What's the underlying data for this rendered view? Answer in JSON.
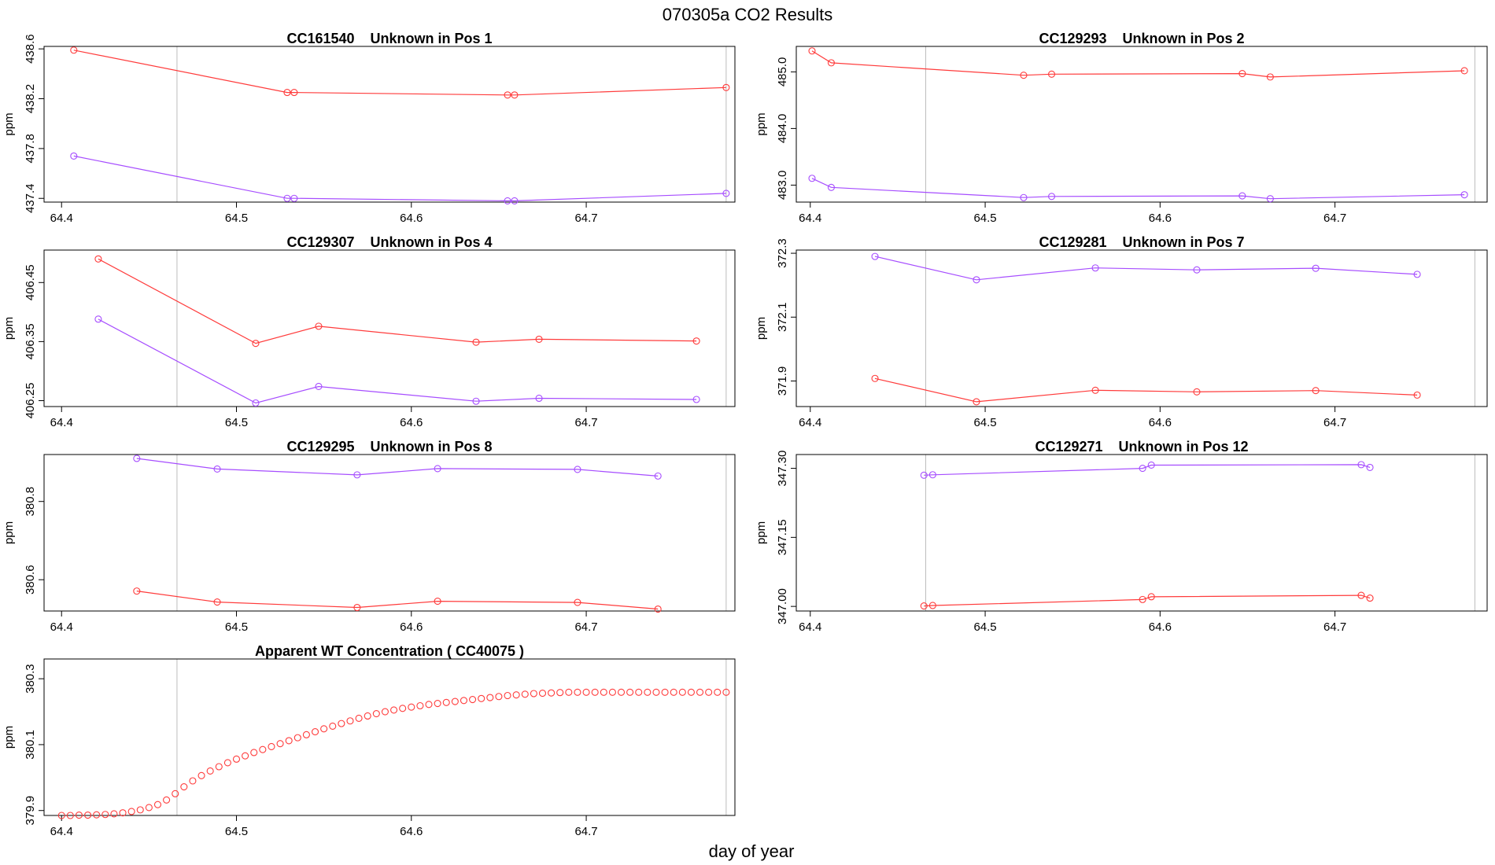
{
  "figure": {
    "title": "070305a  CO2 Results",
    "xlabel": "day of year"
  },
  "colors": {
    "red": "#ff3b3b",
    "purple": "#a64dff",
    "vline": "#bdbdbd",
    "frame": "#000000"
  },
  "chart_data": [
    {
      "type": "line",
      "title": "CC161540    Unknown in Pos 1",
      "ylabel": "ppm",
      "xlim": [
        64.39,
        64.785
      ],
      "ylim": [
        437.37,
        438.62
      ],
      "xticks": [
        64.4,
        64.5,
        64.6,
        64.7
      ],
      "xtick_labels": [
        "64.4",
        "64.5",
        "64.6",
        "64.7"
      ],
      "yticks": [
        437.4,
        437.8,
        438.2,
        438.6
      ],
      "ytick_labels": [
        "437.4",
        "437.8",
        "438.2",
        "438.6"
      ],
      "vlines": [
        64.466,
        64.78
      ],
      "series": [
        {
          "color": "red",
          "x": [
            64.407,
            64.529,
            64.533,
            64.655,
            64.659,
            64.78
          ],
          "y": [
            438.59,
            438.25,
            438.25,
            438.23,
            438.23,
            438.29
          ]
        },
        {
          "color": "purple",
          "x": [
            64.407,
            64.529,
            64.533,
            64.655,
            64.659,
            64.78
          ],
          "y": [
            437.74,
            437.4,
            437.4,
            437.38,
            437.38,
            437.44
          ]
        }
      ]
    },
    {
      "type": "line",
      "title": "CC129293    Unknown in Pos 2",
      "ylabel": "ppm",
      "xlim": [
        64.392,
        64.787
      ],
      "ylim": [
        482.7,
        485.45
      ],
      "xticks": [
        64.4,
        64.5,
        64.6,
        64.7
      ],
      "xtick_labels": [
        "64.4",
        "64.5",
        "64.6",
        "64.7"
      ],
      "yticks": [
        483.0,
        484.0,
        485.0
      ],
      "ytick_labels": [
        "483.0",
        "484.0",
        "485.0"
      ],
      "vlines": [
        64.466,
        64.78
      ],
      "series": [
        {
          "color": "red",
          "x": [
            64.401,
            64.412,
            64.522,
            64.538,
            64.647,
            64.663,
            64.774
          ],
          "y": [
            485.37,
            485.16,
            484.94,
            484.96,
            484.97,
            484.91,
            485.02
          ]
        },
        {
          "color": "purple",
          "x": [
            64.401,
            64.412,
            64.522,
            64.538,
            64.647,
            64.663,
            64.774
          ],
          "y": [
            483.12,
            482.96,
            482.78,
            482.8,
            482.81,
            482.76,
            482.83
          ]
        }
      ]
    },
    {
      "type": "line",
      "title": "CC129307    Unknown in Pos 4",
      "ylabel": "ppm",
      "xlim": [
        64.39,
        64.785
      ],
      "ylim": [
        406.24,
        406.505
      ],
      "xticks": [
        64.4,
        64.5,
        64.6,
        64.7
      ],
      "xtick_labels": [
        "64.4",
        "64.5",
        "64.6",
        "64.7"
      ],
      "yticks": [
        406.25,
        406.35,
        406.45
      ],
      "ytick_labels": [
        "406.25",
        "406.35",
        "406.45"
      ],
      "vlines": [
        64.466,
        64.78
      ],
      "series": [
        {
          "color": "red",
          "x": [
            64.421,
            64.511,
            64.547,
            64.637,
            64.673,
            64.763
          ],
          "y": [
            406.49,
            406.347,
            406.376,
            406.349,
            406.354,
            406.351
          ]
        },
        {
          "color": "purple",
          "x": [
            64.421,
            64.511,
            64.547,
            64.637,
            64.673,
            64.763
          ],
          "y": [
            406.388,
            406.246,
            406.274,
            406.249,
            406.254,
            406.252
          ]
        }
      ]
    },
    {
      "type": "line",
      "title": "CC129281    Unknown in Pos 7",
      "ylabel": "ppm",
      "xlim": [
        64.392,
        64.787
      ],
      "ylim": [
        371.82,
        372.31
      ],
      "xticks": [
        64.4,
        64.5,
        64.6,
        64.7
      ],
      "xtick_labels": [
        "64.4",
        "64.5",
        "64.6",
        "64.7"
      ],
      "yticks": [
        371.9,
        372.1,
        372.3
      ],
      "ytick_labels": [
        "371.9",
        "372.1",
        "372.3"
      ],
      "vlines": [
        64.466,
        64.78
      ],
      "series": [
        {
          "color": "red",
          "x": [
            64.437,
            64.495,
            64.563,
            64.621,
            64.689,
            64.747
          ],
          "y": [
            371.908,
            371.835,
            371.871,
            371.866,
            371.87,
            371.856
          ]
        },
        {
          "color": "purple",
          "x": [
            64.437,
            64.495,
            64.563,
            64.621,
            64.689,
            64.747
          ],
          "y": [
            372.29,
            372.217,
            372.254,
            372.248,
            372.253,
            372.234
          ]
        }
      ]
    },
    {
      "type": "line",
      "title": "CC129295    Unknown in Pos 8",
      "ylabel": "ppm",
      "xlim": [
        64.39,
        64.785
      ],
      "ylim": [
        380.52,
        380.92
      ],
      "xticks": [
        64.4,
        64.5,
        64.6,
        64.7
      ],
      "xtick_labels": [
        "64.4",
        "64.5",
        "64.6",
        "64.7"
      ],
      "yticks": [
        380.6,
        380.8
      ],
      "ytick_labels": [
        "380.6",
        "380.8"
      ],
      "vlines": [
        64.466,
        64.78
      ],
      "series": [
        {
          "color": "red",
          "x": [
            64.443,
            64.489,
            64.569,
            64.615,
            64.695,
            64.741
          ],
          "y": [
            380.571,
            380.543,
            380.529,
            380.545,
            380.542,
            380.525
          ]
        },
        {
          "color": "purple",
          "x": [
            64.443,
            64.489,
            64.569,
            64.615,
            64.695,
            64.741
          ],
          "y": [
            380.91,
            380.883,
            380.868,
            380.884,
            380.882,
            380.865
          ]
        }
      ]
    },
    {
      "type": "line",
      "title": "CC129271    Unknown in Pos 12",
      "ylabel": "ppm",
      "xlim": [
        64.392,
        64.787
      ],
      "ylim": [
        346.99,
        347.33
      ],
      "xticks": [
        64.4,
        64.5,
        64.6,
        64.7
      ],
      "xtick_labels": [
        "64.4",
        "64.5",
        "64.6",
        "64.7"
      ],
      "yticks": [
        347.0,
        347.15,
        347.3
      ],
      "ytick_labels": [
        "347.00",
        "347.15",
        "347.30"
      ],
      "vlines": [
        64.466,
        64.78
      ],
      "series": [
        {
          "color": "red",
          "x": [
            64.465,
            64.47,
            64.59,
            64.595,
            64.715,
            64.72
          ],
          "y": [
            347.001,
            347.002,
            347.015,
            347.021,
            347.024,
            347.018
          ]
        },
        {
          "color": "purple",
          "x": [
            64.465,
            64.47,
            64.59,
            64.595,
            64.715,
            64.72
          ],
          "y": [
            347.285,
            347.286,
            347.3,
            347.307,
            347.308,
            347.302
          ]
        }
      ]
    },
    {
      "type": "scatter",
      "title": "Apparent WT Concentration ( CC40075 )",
      "ylabel": "ppm",
      "xlim": [
        64.39,
        64.785
      ],
      "ylim": [
        379.885,
        380.36
      ],
      "xticks": [
        64.4,
        64.5,
        64.6,
        64.7
      ],
      "xtick_labels": [
        "64.4",
        "64.5",
        "64.6",
        "64.7"
      ],
      "yticks": [
        379.9,
        380.1,
        380.3
      ],
      "ytick_labels": [
        "379.9",
        "380.1",
        "380.3"
      ],
      "vlines": [
        64.466,
        64.78
      ],
      "x_start": 64.4,
      "x_step": 0.005,
      "series": [
        {
          "color": "red",
          "values": [
            379.885,
            379.885,
            379.886,
            379.886,
            379.887,
            379.888,
            379.89,
            379.893,
            379.897,
            379.902,
            379.909,
            379.918,
            379.932,
            379.951,
            379.972,
            379.99,
            380.006,
            380.02,
            380.033,
            380.045,
            380.056,
            380.066,
            380.076,
            380.085,
            380.094,
            380.103,
            380.112,
            380.121,
            380.13,
            380.139,
            380.148,
            380.156,
            380.164,
            380.172,
            380.18,
            380.187,
            380.194,
            380.2,
            380.205,
            380.21,
            380.214,
            380.218,
            380.222,
            380.225,
            380.228,
            380.231,
            380.234,
            380.237,
            380.24,
            380.243,
            380.246,
            380.249,
            380.251,
            380.253,
            380.255,
            380.256,
            380.257,
            380.258,
            380.259,
            380.259,
            380.259,
            380.259,
            380.259,
            380.259,
            380.259,
            380.259,
            380.259,
            380.259,
            380.259,
            380.259,
            380.259,
            380.259,
            380.259,
            380.259,
            380.259,
            380.259,
            380.259
          ]
        }
      ]
    }
  ]
}
